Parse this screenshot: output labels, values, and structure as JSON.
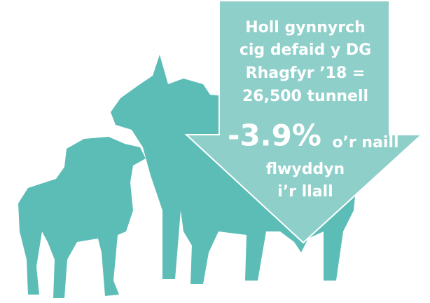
{
  "headline": {
    "lines": [
      "Holl gynnyrch",
      "cig defaid y DG",
      "Rhagfyr ’18 =",
      "26,500 tunnell"
    ]
  },
  "change": {
    "figure": "-3.9%",
    "lines": [
      "o’r naill",
      "flwyddyn",
      "i’r llall"
    ]
  }
}
